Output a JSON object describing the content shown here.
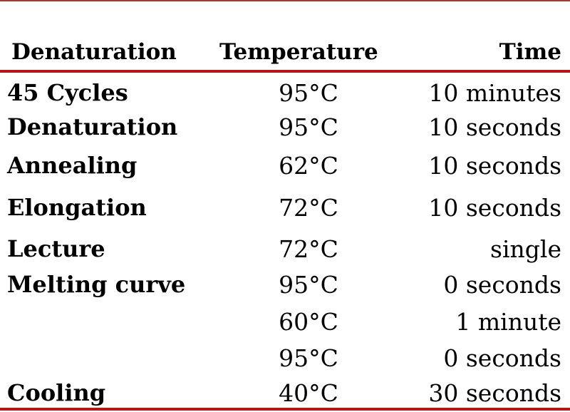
{
  "colors": {
    "rule": "#b0181c",
    "text": "#000000",
    "background": "#ffffff"
  },
  "table": {
    "headers": {
      "step": "Denaturation",
      "temperature": "Temperature",
      "time": "Time"
    },
    "rows": [
      {
        "step": "45 Cycles",
        "temperature": "95°C",
        "time": "10 minutes"
      },
      {
        "step": "Denaturation",
        "temperature": "95°C",
        "time": "10 seconds"
      },
      {
        "step": "Annealing",
        "temperature": "62°C",
        "time": "10 seconds"
      },
      {
        "step": "Elongation",
        "temperature": "72°C",
        "time": "10 seconds"
      },
      {
        "step": "Lecture",
        "temperature": "72°C",
        "time": "single"
      },
      {
        "step": "Melting curve",
        "temperature": "95°C",
        "time": "0 seconds"
      },
      {
        "step": "",
        "temperature": "60°C",
        "time": "1 minute"
      },
      {
        "step": "",
        "temperature": "95°C",
        "time": "0 seconds"
      },
      {
        "step": "Cooling",
        "temperature": "40°C",
        "time": "30 seconds"
      }
    ]
  }
}
